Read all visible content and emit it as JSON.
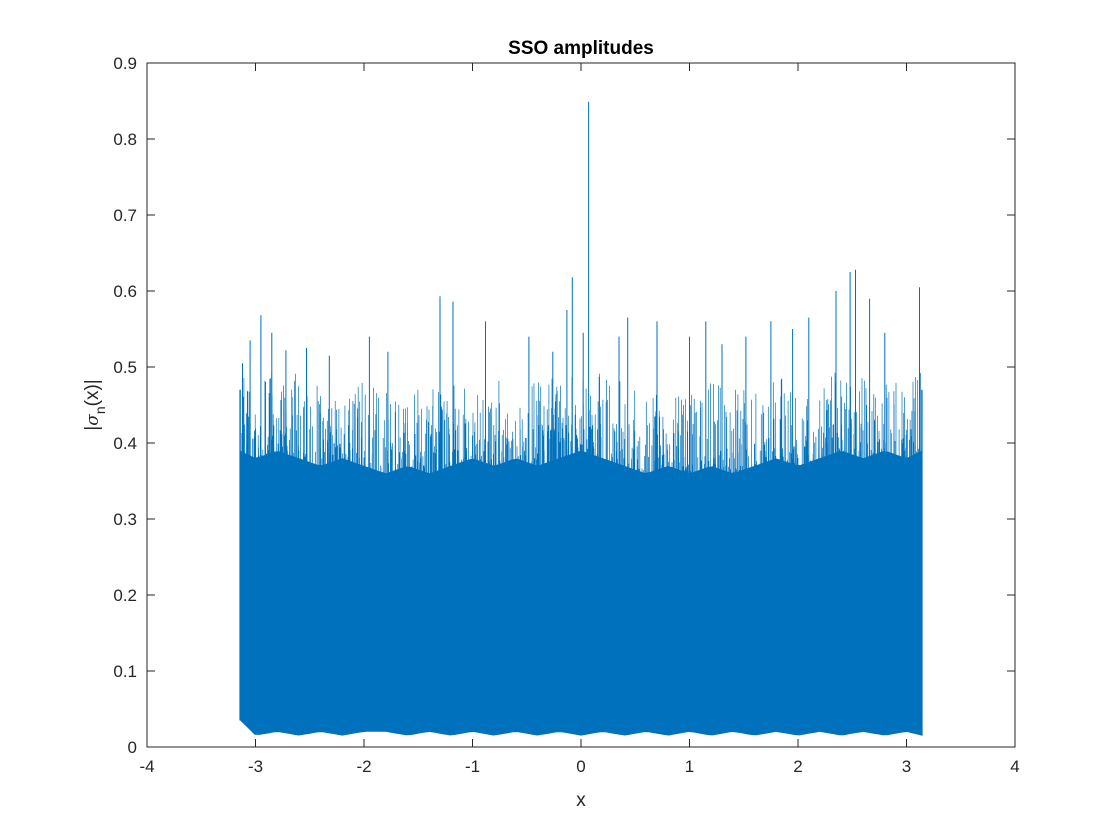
{
  "chart_data": {
    "type": "line",
    "title": "SSO amplitudes",
    "xlabel": "x",
    "ylabel": {
      "before": "|",
      "sigma": "σ",
      "subscript": "n",
      "after": "(x)|"
    },
    "xlim": [
      -4,
      4
    ],
    "ylim": [
      0,
      0.9
    ],
    "xticks": [
      -4,
      -3,
      -2,
      -1,
      0,
      1,
      2,
      3,
      4
    ],
    "yticks": [
      0,
      0.1,
      0.2,
      0.3,
      0.4,
      0.5,
      0.6,
      0.7,
      0.8,
      0.9
    ],
    "xtick_labels": [
      "-4",
      "-3",
      "-2",
      "-1",
      "0",
      "1",
      "2",
      "3",
      "4"
    ],
    "ytick_labels": [
      "0",
      "0.1",
      "0.2",
      "0.3",
      "0.4",
      "0.5",
      "0.6",
      "0.7",
      "0.8",
      "0.9"
    ],
    "grid": false,
    "legend": "none",
    "series": [
      {
        "color": "#0072BD",
        "x_range": [
          -3.14159,
          3.14159
        ],
        "envelope": {
          "x": [
            -3.14,
            -3.0,
            -2.8,
            -2.6,
            -2.4,
            -2.2,
            -2.0,
            -1.8,
            -1.6,
            -1.4,
            -1.2,
            -1.0,
            -0.8,
            -0.6,
            -0.4,
            -0.2,
            0.0,
            0.2,
            0.4,
            0.6,
            0.8,
            1.0,
            1.2,
            1.4,
            1.6,
            1.8,
            2.0,
            2.2,
            2.4,
            2.6,
            2.8,
            3.0,
            3.14
          ],
          "min": [
            0.035,
            0.015,
            0.02,
            0.015,
            0.02,
            0.015,
            0.02,
            0.02,
            0.015,
            0.02,
            0.015,
            0.02,
            0.015,
            0.02,
            0.015,
            0.02,
            0.015,
            0.02,
            0.015,
            0.02,
            0.015,
            0.02,
            0.015,
            0.02,
            0.015,
            0.02,
            0.015,
            0.02,
            0.015,
            0.02,
            0.015,
            0.02,
            0.015
          ],
          "dense_max": [
            0.39,
            0.38,
            0.39,
            0.38,
            0.37,
            0.38,
            0.37,
            0.36,
            0.37,
            0.36,
            0.37,
            0.38,
            0.37,
            0.38,
            0.37,
            0.38,
            0.39,
            0.38,
            0.37,
            0.36,
            0.37,
            0.36,
            0.37,
            0.36,
            0.37,
            0.38,
            0.37,
            0.38,
            0.39,
            0.38,
            0.39,
            0.38,
            0.39
          ]
        },
        "peaks": [
          {
            "x": -3.12,
            "y": 0.505
          },
          {
            "x": -3.05,
            "y": 0.535
          },
          {
            "x": -2.95,
            "y": 0.568
          },
          {
            "x": -2.85,
            "y": 0.545
          },
          {
            "x": -2.72,
            "y": 0.522
          },
          {
            "x": -2.53,
            "y": 0.525
          },
          {
            "x": -2.32,
            "y": 0.515
          },
          {
            "x": -1.95,
            "y": 0.54
          },
          {
            "x": -1.78,
            "y": 0.52
          },
          {
            "x": -1.3,
            "y": 0.593
          },
          {
            "x": -1.18,
            "y": 0.586
          },
          {
            "x": -0.88,
            "y": 0.56
          },
          {
            "x": -0.48,
            "y": 0.54
          },
          {
            "x": -0.26,
            "y": 0.52
          },
          {
            "x": -0.13,
            "y": 0.575
          },
          {
            "x": -0.08,
            "y": 0.618
          },
          {
            "x": 0.02,
            "y": 0.545
          },
          {
            "x": 0.07,
            "y": 0.849
          },
          {
            "x": 0.35,
            "y": 0.54
          },
          {
            "x": 0.43,
            "y": 0.565
          },
          {
            "x": 0.7,
            "y": 0.56
          },
          {
            "x": 1.0,
            "y": 0.54
          },
          {
            "x": 1.15,
            "y": 0.56
          },
          {
            "x": 1.3,
            "y": 0.53
          },
          {
            "x": 1.52,
            "y": 0.54
          },
          {
            "x": 1.75,
            "y": 0.56
          },
          {
            "x": 1.95,
            "y": 0.55
          },
          {
            "x": 2.1,
            "y": 0.565
          },
          {
            "x": 2.35,
            "y": 0.6
          },
          {
            "x": 2.48,
            "y": 0.625
          },
          {
            "x": 2.53,
            "y": 0.628
          },
          {
            "x": 2.66,
            "y": 0.59
          },
          {
            "x": 2.8,
            "y": 0.545
          },
          {
            "x": 3.12,
            "y": 0.605
          }
        ]
      }
    ]
  }
}
